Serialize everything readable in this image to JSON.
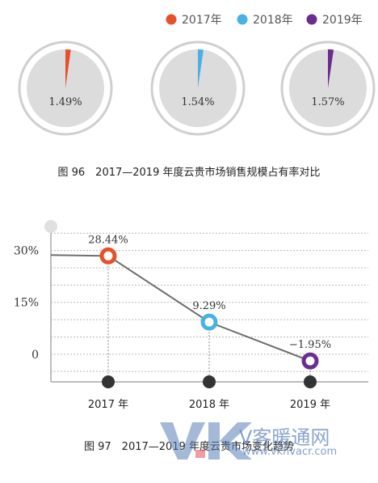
{
  "figure96": {
    "caption": "图 96　2017—2019 年度云贵市场销售规模占有率对比",
    "legend": [
      {
        "label": "2017年",
        "color": "#e8502a"
      },
      {
        "label": "2018年",
        "color": "#4ab1e4"
      },
      {
        "label": "2019年",
        "color": "#6a2d91"
      }
    ],
    "chart_data": {
      "type": "pie",
      "series": [
        {
          "name": "2017年",
          "value": 1.49,
          "label": "1.49%",
          "color": "#e8502a"
        },
        {
          "name": "2018年",
          "value": 1.54,
          "label": "1.54%",
          "color": "#4ab1e4"
        },
        {
          "name": "2019年",
          "value": 1.57,
          "label": "1.57%",
          "color": "#6a2d91"
        }
      ]
    }
  },
  "figure97": {
    "caption": "图 97　2017—2019 年度云贵市场变化趋势",
    "chart_data": {
      "type": "line",
      "categories": [
        "2017 年",
        "2018 年",
        "2019 年"
      ],
      "values": [
        28.44,
        9.29,
        -1.95
      ],
      "data_labels": [
        "28.44%",
        "9.29%",
        "−1.95%"
      ],
      "marker_colors": [
        "#e8502a",
        "#4ab1e4",
        "#6a2d91"
      ],
      "y_ticks": [
        {
          "value": 30,
          "label": "30%"
        },
        {
          "value": 15,
          "label": "15%"
        },
        {
          "value": 0,
          "label": "0"
        }
      ],
      "ylim": [
        -8,
        36
      ],
      "grid": true
    }
  },
  "watermark": {
    "logo": "VK",
    "text": "V客暖通网",
    "url": "www.vkhvacr.com"
  }
}
